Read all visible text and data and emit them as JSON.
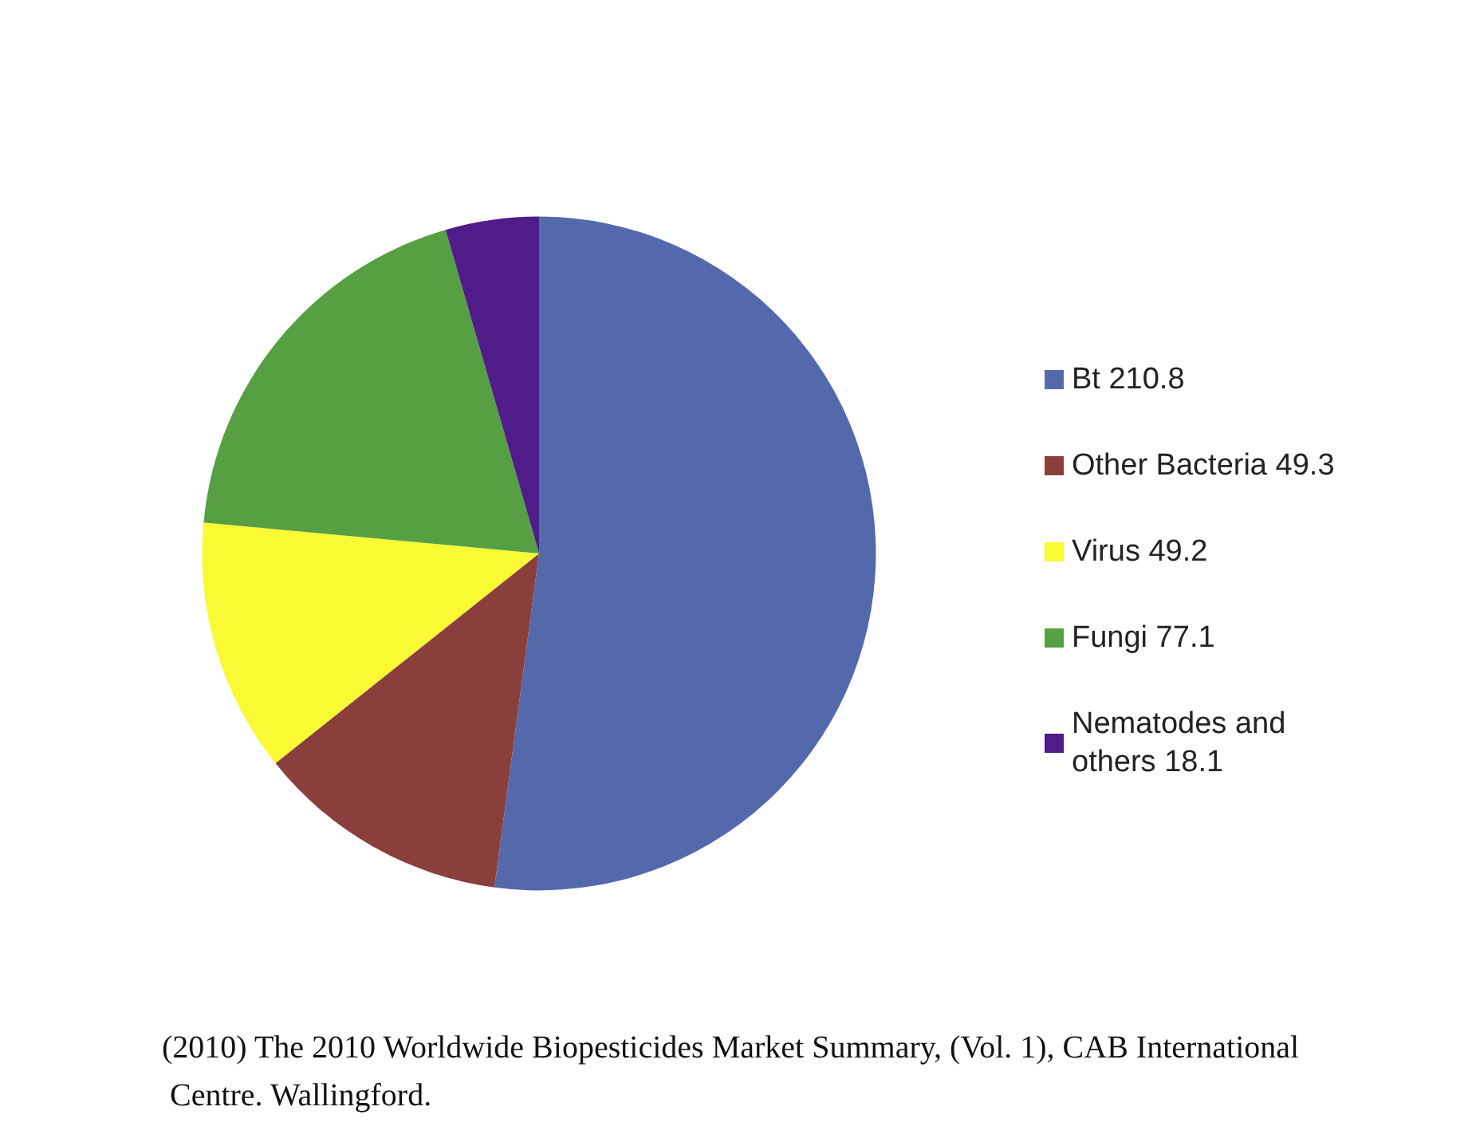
{
  "chart_data": {
    "type": "pie",
    "categories": [
      "Bt 210.8",
      "Other Bacteria 49.3",
      "Virus 49.2",
      "Fungi 77.1",
      "Nematodes and others 18.1"
    ],
    "values": [
      210.8,
      49.3,
      49.2,
      77.1,
      18.1
    ],
    "colors": [
      "#5469ab",
      "#8b3f3c",
      "#f9f934",
      "#56a043",
      "#4f1c8a"
    ],
    "legend": "right",
    "annotations": [
      "(2010) The 2010 Worldwide Biopesticides Market Summary, (Vol. 1), CAB International Centre. Wallingford."
    ]
  }
}
